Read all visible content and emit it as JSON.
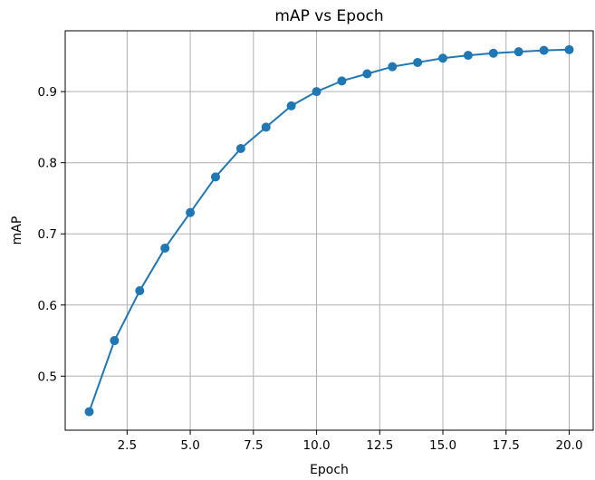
{
  "chart_data": {
    "type": "line",
    "title": "mAP vs Epoch",
    "xlabel": "Epoch",
    "ylabel": "mAP",
    "xlim": [
      0.05,
      20.95
    ],
    "ylim": [
      0.424,
      0.9855
    ],
    "x_ticks": [
      2.5,
      5.0,
      7.5,
      10.0,
      12.5,
      15.0,
      17.5,
      20.0
    ],
    "x_tick_labels": [
      "2.5",
      "5.0",
      "7.5",
      "10.0",
      "12.5",
      "15.0",
      "17.5",
      "20.0"
    ],
    "y_ticks": [
      0.5,
      0.6,
      0.7,
      0.8,
      0.9
    ],
    "y_tick_labels": [
      "0.5",
      "0.6",
      "0.7",
      "0.8",
      "0.9"
    ],
    "grid": true,
    "color": "#1f77b4",
    "marker": "circle",
    "series": [
      {
        "x": [
          1,
          2,
          3,
          4,
          5,
          6,
          7,
          8,
          9,
          10,
          11,
          12,
          13,
          14,
          15,
          16,
          17,
          18,
          19,
          20
        ],
        "values": [
          0.45,
          0.55,
          0.62,
          0.68,
          0.73,
          0.78,
          0.82,
          0.85,
          0.88,
          0.9,
          0.915,
          0.925,
          0.935,
          0.941,
          0.947,
          0.951,
          0.954,
          0.956,
          0.958,
          0.959
        ]
      }
    ]
  }
}
